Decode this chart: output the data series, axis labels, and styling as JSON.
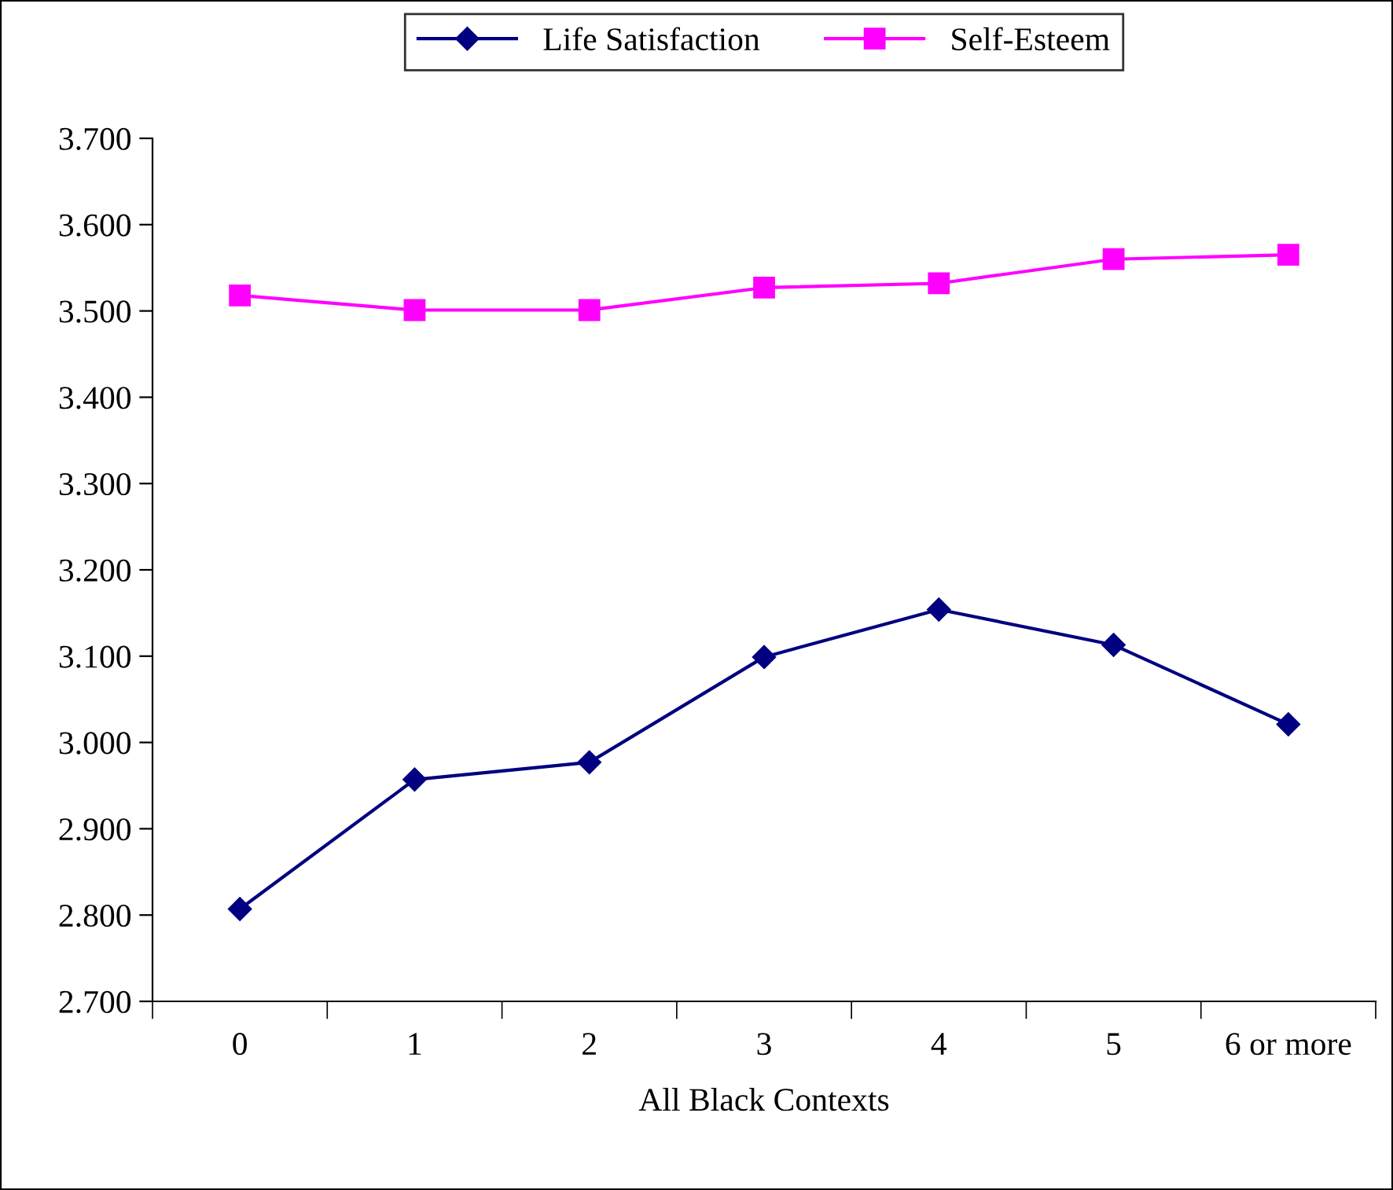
{
  "chart_data": {
    "type": "line",
    "xlabel": "All Black Contexts",
    "categories": [
      "0",
      "1",
      "2",
      "3",
      "4",
      "5",
      "6 or more"
    ],
    "series": [
      {
        "name": "Life Satisfaction",
        "color": "#000080",
        "marker": "diamond",
        "values": [
          2.807,
          2.957,
          2.977,
          3.099,
          3.154,
          3.113,
          3.021
        ]
      },
      {
        "name": "Self-Esteem",
        "color": "#ff00ff",
        "marker": "square",
        "values": [
          3.518,
          3.501,
          3.501,
          3.527,
          3.532,
          3.56,
          3.565
        ]
      }
    ],
    "ylim": [
      2.7,
      3.7
    ],
    "yticks": [
      {
        "value": 2.7,
        "label": "2.700"
      },
      {
        "value": 2.8,
        "label": "2.800"
      },
      {
        "value": 2.9,
        "label": "2.900"
      },
      {
        "value": 3.0,
        "label": "3.000"
      },
      {
        "value": 3.1,
        "label": "3.100"
      },
      {
        "value": 3.2,
        "label": "3.200"
      },
      {
        "value": 3.3,
        "label": "3.300"
      },
      {
        "value": 3.4,
        "label": "3.400"
      },
      {
        "value": 3.5,
        "label": "3.500"
      },
      {
        "value": 3.6,
        "label": "3.600"
      },
      {
        "value": 3.7,
        "label": "3.700"
      }
    ],
    "grid": false,
    "legend": "top",
    "line_style": "solid"
  }
}
